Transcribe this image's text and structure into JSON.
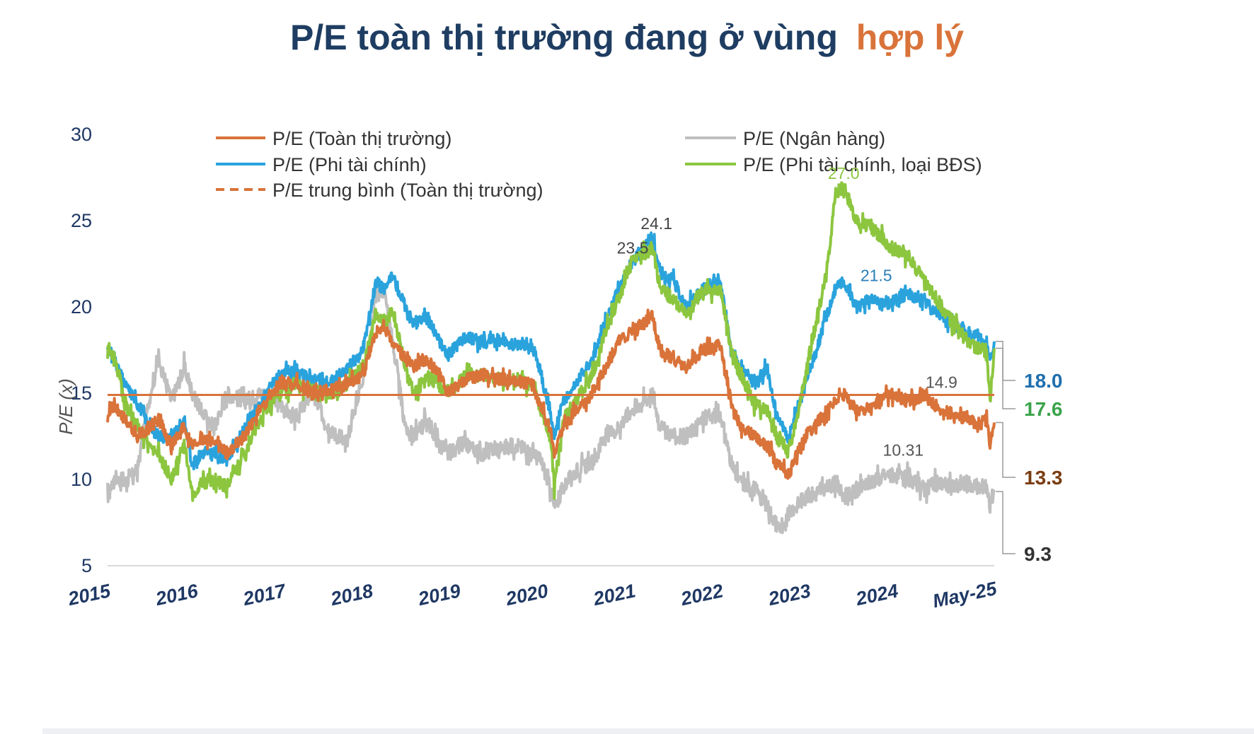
{
  "title": {
    "main": "P/E toàn thị trường đang ở vùng",
    "highlight": "hợp lý"
  },
  "colors": {
    "title": "#1f3d62",
    "highlight": "#d9733a",
    "overall": "#d9733a",
    "bank": "#bfbfbf",
    "nonfin": "#2aa3dd",
    "nonfin_ex_re": "#8cc63f",
    "axis_text": "#1f3864",
    "grid": "#d9d9d9"
  },
  "chart_data": {
    "type": "line",
    "ylabel": "P/E (x)",
    "xlabel": "",
    "ylim": [
      5,
      30
    ],
    "yticks": [
      "5",
      "10",
      "15",
      "20",
      "25",
      "30"
    ],
    "xticks": [
      "2015",
      "2016",
      "2017",
      "2018",
      "2019",
      "2020",
      "2021",
      "2022",
      "2023",
      "2024",
      "May-25"
    ],
    "grid": false,
    "legend_position": "top",
    "legend": [
      {
        "label": "P/E (Toàn thị trường)",
        "key": "overall",
        "style": "solid"
      },
      {
        "label": "P/E (Ngân hàng)",
        "key": "bank",
        "style": "solid"
      },
      {
        "label": "P/E (Phi tài chính)",
        "key": "nonfin",
        "style": "solid"
      },
      {
        "label": "P/E (Phi tài chính, loại BĐS)",
        "key": "nonfin_ex_re",
        "style": "solid"
      },
      {
        "label": "P/E trung bình (Toàn thị trường)",
        "key": "overall",
        "style": "dashed"
      }
    ],
    "average_line": {
      "value": 14.9,
      "label": "14.9"
    },
    "series": [
      {
        "name": "P/E (Phi tài chính)",
        "key": "nonfin",
        "x": [
          2015.0,
          2015.08,
          2015.2,
          2015.35,
          2015.5,
          2015.6,
          2015.75,
          2015.9,
          2016.0,
          2016.1,
          2016.25,
          2016.4,
          2016.6,
          2016.8,
          2017.0,
          2017.2,
          2017.4,
          2017.6,
          2017.8,
          2018.0,
          2018.08,
          2018.15,
          2018.25,
          2018.35,
          2018.5,
          2018.6,
          2018.75,
          2018.9,
          2019.0,
          2019.2,
          2019.4,
          2019.6,
          2019.8,
          2020.0,
          2020.1,
          2020.2,
          2020.25,
          2020.35,
          2020.5,
          2020.7,
          2020.85,
          2021.0,
          2021.15,
          2021.3,
          2021.4,
          2021.5,
          2021.65,
          2021.8,
          2022.0,
          2022.2,
          2022.35,
          2022.45,
          2022.6,
          2022.75,
          2022.85,
          2022.95,
          2023.0,
          2023.1,
          2023.2,
          2023.3,
          2023.45,
          2023.55,
          2023.65,
          2023.8,
          2024.0,
          2024.2,
          2024.4,
          2024.6,
          2024.8,
          2024.95,
          2025.1,
          2025.25,
          2025.33,
          2025.37,
          2025.42
        ],
        "y": [
          17.6,
          17.0,
          15.5,
          14.5,
          13.0,
          12.6,
          12.3,
          13.5,
          10.8,
          11.5,
          11.5,
          11.2,
          12.8,
          14.5,
          16.0,
          16.2,
          15.8,
          15.6,
          16.3,
          17.5,
          19.5,
          21.5,
          21.0,
          21.8,
          20.0,
          19.0,
          19.5,
          18.0,
          17.2,
          18.3,
          18.0,
          18.1,
          17.8,
          17.6,
          16.0,
          14.0,
          12.5,
          14.5,
          15.5,
          17.0,
          19.0,
          21.0,
          22.5,
          23.5,
          24.1,
          22.0,
          21.5,
          20.0,
          21.0,
          21.5,
          17.0,
          16.5,
          15.5,
          16.5,
          14.0,
          13.0,
          12.3,
          14.0,
          15.5,
          17.0,
          19.5,
          21.0,
          21.5,
          20.0,
          20.5,
          20.2,
          20.8,
          20.3,
          19.5,
          19.0,
          18.5,
          18.2,
          17.8,
          16.8,
          18.0
        ]
      },
      {
        "name": "P/E (Phi tài chính, loại BĐS)",
        "key": "nonfin_ex_re",
        "x": [
          2015.0,
          2015.08,
          2015.2,
          2015.35,
          2015.5,
          2015.6,
          2015.75,
          2015.9,
          2016.0,
          2016.1,
          2016.25,
          2016.4,
          2016.6,
          2016.8,
          2017.0,
          2017.2,
          2017.4,
          2017.6,
          2017.8,
          2018.0,
          2018.08,
          2018.15,
          2018.25,
          2018.35,
          2018.5,
          2018.6,
          2018.75,
          2018.9,
          2019.0,
          2019.2,
          2019.4,
          2019.6,
          2019.8,
          2020.0,
          2020.1,
          2020.2,
          2020.25,
          2020.35,
          2020.5,
          2020.7,
          2020.85,
          2021.0,
          2021.15,
          2021.3,
          2021.4,
          2021.5,
          2021.65,
          2021.8,
          2022.0,
          2022.2,
          2022.35,
          2022.45,
          2022.6,
          2022.75,
          2022.85,
          2022.95,
          2023.0,
          2023.1,
          2023.2,
          2023.3,
          2023.45,
          2023.55,
          2023.65,
          2023.8,
          2024.0,
          2024.2,
          2024.4,
          2024.6,
          2024.8,
          2024.95,
          2025.1,
          2025.25,
          2025.33,
          2025.37,
          2025.42
        ],
        "y": [
          17.6,
          17.2,
          14.5,
          13.0,
          12.0,
          11.5,
          10.0,
          12.0,
          9.0,
          9.8,
          10.0,
          9.5,
          11.5,
          13.5,
          15.0,
          15.5,
          15.2,
          14.8,
          15.5,
          16.5,
          18.0,
          19.5,
          19.0,
          19.8,
          16.5,
          15.0,
          16.0,
          15.5,
          15.0,
          16.0,
          16.0,
          15.8,
          15.8,
          15.5,
          14.0,
          12.5,
          9.5,
          13.5,
          14.5,
          16.0,
          18.5,
          20.5,
          22.5,
          23.0,
          23.5,
          21.0,
          20.5,
          19.5,
          21.0,
          21.0,
          17.0,
          16.0,
          14.5,
          14.0,
          12.5,
          12.0,
          11.5,
          13.5,
          16.0,
          18.5,
          22.0,
          26.5,
          27.0,
          25.0,
          24.5,
          23.5,
          23.0,
          21.5,
          20.0,
          19.0,
          18.0,
          17.5,
          17.5,
          14.5,
          17.6
        ]
      },
      {
        "name": "P/E (Toàn thị trường)",
        "key": "overall",
        "x": [
          2015.0,
          2015.08,
          2015.2,
          2015.35,
          2015.5,
          2015.6,
          2015.75,
          2015.9,
          2016.0,
          2016.1,
          2016.25,
          2016.4,
          2016.6,
          2016.8,
          2017.0,
          2017.2,
          2017.4,
          2017.6,
          2017.8,
          2018.0,
          2018.08,
          2018.15,
          2018.25,
          2018.35,
          2018.5,
          2018.6,
          2018.75,
          2018.9,
          2019.0,
          2019.2,
          2019.4,
          2019.6,
          2019.8,
          2020.0,
          2020.1,
          2020.2,
          2020.25,
          2020.35,
          2020.5,
          2020.7,
          2020.85,
          2021.0,
          2021.15,
          2021.3,
          2021.4,
          2021.5,
          2021.65,
          2021.8,
          2022.0,
          2022.2,
          2022.35,
          2022.45,
          2022.6,
          2022.75,
          2022.85,
          2022.95,
          2023.0,
          2023.1,
          2023.2,
          2023.3,
          2023.45,
          2023.55,
          2023.65,
          2023.8,
          2024.0,
          2024.2,
          2024.4,
          2024.6,
          2024.8,
          2024.95,
          2025.1,
          2025.25,
          2025.33,
          2025.37,
          2025.42
        ],
        "y": [
          14.0,
          14.2,
          13.5,
          12.5,
          13.0,
          13.5,
          12.0,
          13.0,
          12.0,
          12.5,
          12.2,
          11.5,
          12.5,
          14.0,
          15.5,
          15.5,
          15.0,
          15.2,
          15.5,
          16.0,
          17.5,
          18.5,
          19.0,
          18.0,
          17.0,
          16.5,
          17.0,
          16.0,
          15.0,
          15.8,
          16.0,
          15.8,
          15.7,
          15.5,
          14.0,
          13.0,
          11.5,
          13.0,
          14.0,
          15.0,
          16.5,
          18.0,
          18.5,
          19.0,
          19.5,
          17.5,
          17.0,
          16.5,
          17.5,
          17.8,
          14.0,
          13.0,
          12.5,
          12.0,
          11.0,
          10.5,
          10.2,
          11.5,
          12.5,
          13.0,
          14.0,
          14.5,
          15.0,
          14.0,
          14.2,
          15.0,
          14.5,
          14.8,
          14.0,
          13.8,
          13.5,
          13.2,
          13.5,
          11.8,
          13.3
        ]
      },
      {
        "name": "P/E (Ngân hàng)",
        "key": "bank",
        "x": [
          2015.0,
          2015.08,
          2015.2,
          2015.35,
          2015.5,
          2015.6,
          2015.75,
          2015.9,
          2016.0,
          2016.1,
          2016.25,
          2016.4,
          2016.6,
          2016.8,
          2017.0,
          2017.2,
          2017.4,
          2017.6,
          2017.8,
          2018.0,
          2018.08,
          2018.15,
          2018.25,
          2018.35,
          2018.5,
          2018.6,
          2018.75,
          2018.9,
          2019.0,
          2019.2,
          2019.4,
          2019.6,
          2019.8,
          2020.0,
          2020.1,
          2020.2,
          2020.25,
          2020.35,
          2020.5,
          2020.7,
          2020.85,
          2021.0,
          2021.15,
          2021.3,
          2021.4,
          2021.5,
          2021.65,
          2021.8,
          2022.0,
          2022.2,
          2022.35,
          2022.45,
          2022.6,
          2022.75,
          2022.85,
          2022.95,
          2023.0,
          2023.1,
          2023.2,
          2023.3,
          2023.45,
          2023.55,
          2023.65,
          2023.8,
          2024.0,
          2024.2,
          2024.4,
          2024.6,
          2024.8,
          2024.95,
          2025.1,
          2025.25,
          2025.33,
          2025.37,
          2025.42
        ],
        "y": [
          9.0,
          10.2,
          9.8,
          10.5,
          15.0,
          17.0,
          14.5,
          16.5,
          15.0,
          14.0,
          13.0,
          15.0,
          14.5,
          15.0,
          14.5,
          13.5,
          15.0,
          13.0,
          12.0,
          16.0,
          18.0,
          20.5,
          21.0,
          18.0,
          13.0,
          12.5,
          13.5,
          12.0,
          11.5,
          12.0,
          11.5,
          11.8,
          12.0,
          11.5,
          11.0,
          9.5,
          8.3,
          9.5,
          10.5,
          11.0,
          12.5,
          13.0,
          14.0,
          14.5,
          15.0,
          13.0,
          12.5,
          12.5,
          13.5,
          13.8,
          10.5,
          9.8,
          9.5,
          8.5,
          7.5,
          7.0,
          8.0,
          8.5,
          9.0,
          9.2,
          9.5,
          9.8,
          9.0,
          9.3,
          10.0,
          10.31,
          10.0,
          9.5,
          9.8,
          9.5,
          9.8,
          9.5,
          9.8,
          8.5,
          9.3
        ]
      }
    ],
    "annotations": [
      {
        "text": "24.1",
        "x": 2021.45,
        "y": 24.1,
        "key": "nonfin_text"
      },
      {
        "text": "23.5",
        "x": 2021.32,
        "y": 23.5,
        "key": "nonfin_text"
      },
      {
        "text": "27.0",
        "x": 2023.65,
        "y": 27.0,
        "key": "nonfin_ex_re"
      },
      {
        "text": "21.5",
        "x": 2023.9,
        "y": 21.5,
        "key": "nonfin"
      },
      {
        "text": "10.31",
        "x": 2024.35,
        "y": 10.31,
        "key": "bank_text"
      }
    ],
    "end_labels": [
      {
        "text": "18.0",
        "value": 18.0,
        "key": "nonfin"
      },
      {
        "text": "17.6",
        "value": 17.6,
        "key": "nonfin_ex_re_dark"
      },
      {
        "text": "13.3",
        "value": 13.3,
        "key": "overall_dark"
      },
      {
        "text": "9.3",
        "value": 9.3,
        "key": "bank_dark"
      }
    ]
  }
}
